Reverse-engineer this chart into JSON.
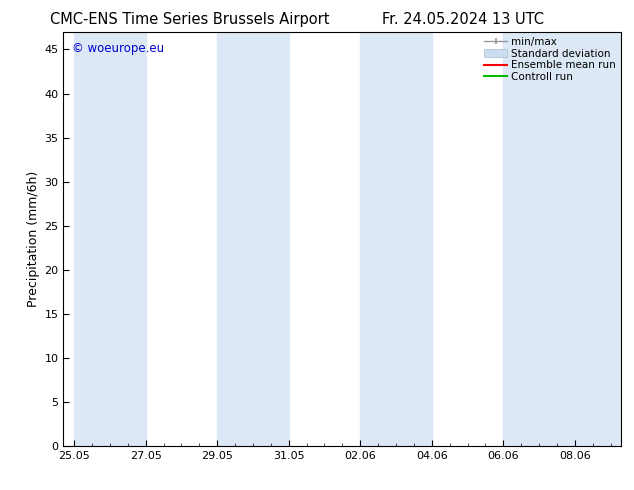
{
  "title": "CMC-ENS Time Series Brussels Airport",
  "title_right": "Fr. 24.05.2024 13 UTC",
  "ylabel": "Precipitation (mm/6h)",
  "watermark": "© woeurope.eu",
  "watermark_color": "#0000cc",
  "ylim": [
    0,
    47
  ],
  "yticks": [
    0,
    5,
    10,
    15,
    20,
    25,
    30,
    35,
    40,
    45
  ],
  "xtick_positions": [
    0,
    2,
    4,
    6,
    8,
    10,
    12,
    14
  ],
  "xtick_labels": [
    "25.05",
    "27.05",
    "29.05",
    "31.05",
    "02.06",
    "04.06",
    "06.06",
    "08.06"
  ],
  "xlim": [
    -0.3,
    15.3
  ],
  "total_days": 15,
  "background_color": "#ffffff",
  "shaded_color": "#dce8f5",
  "font_family": "DejaVu Sans",
  "title_fontsize": 10.5,
  "axis_fontsize": 9,
  "tick_fontsize": 8,
  "legend_fontsize": 7.5,
  "shaded_bands": [
    [
      0,
      2
    ],
    [
      4,
      6
    ],
    [
      8,
      10
    ],
    [
      12,
      15.3
    ]
  ],
  "legend_entries": [
    {
      "label": "min/max",
      "color": "#999999"
    },
    {
      "label": "Standard deviation",
      "color": "#ccddef"
    },
    {
      "label": "Ensemble mean run",
      "color": "#ff0000"
    },
    {
      "label": "Controll run",
      "color": "#00bb00"
    }
  ]
}
